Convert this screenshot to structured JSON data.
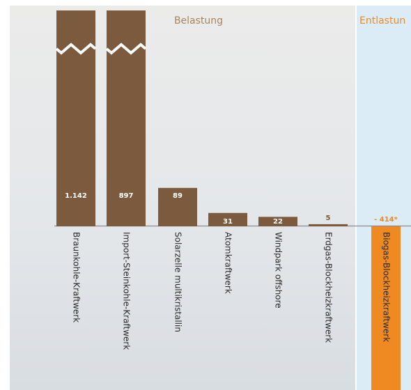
{
  "chart_data": {
    "type": "bar",
    "categories": [
      "Braunkohle-Kraftwerk",
      "Import-Steinkohle-Kraftwerk",
      "Solarzelle multikristallin",
      "Atomkraftwerk",
      "Windpark offshore",
      "Erdgas-Blockheizkraftwerk",
      "Biogas-Blockheizkraftwerk"
    ],
    "values": [
      1142,
      897,
      89,
      31,
      22,
      5,
      -414
    ],
    "value_labels": [
      "1.142",
      "897",
      "89",
      "31",
      "22",
      "5",
      "- 414*"
    ],
    "colors": [
      "#7b5a3d",
      "#7b5a3d",
      "#7b5a3d",
      "#7b5a3d",
      "#7b5a3d",
      "#7b5a3d",
      "#ef8a22"
    ],
    "annotations": [
      "Belastung",
      "Entlastun"
    ]
  }
}
